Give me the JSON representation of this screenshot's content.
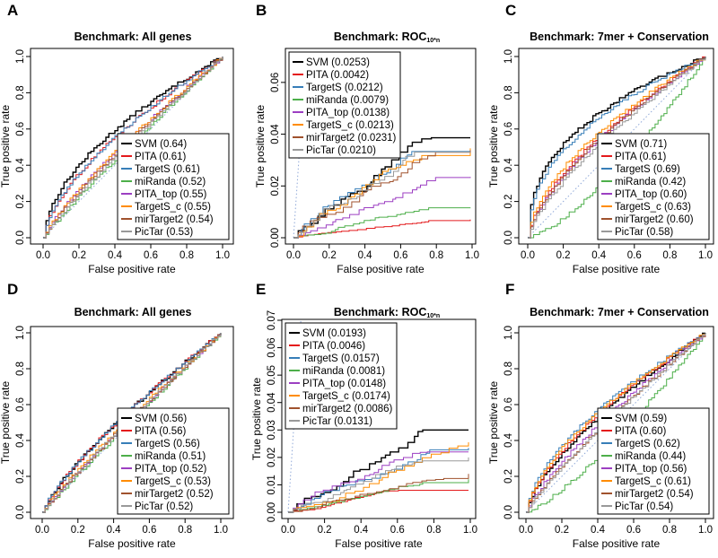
{
  "figure": {
    "colors": {
      "SVM": "#000000",
      "PITA": "#e41a1c",
      "TargetS": "#377eb8",
      "miRanda": "#4daf4a",
      "PITA_top": "#9c3fc2",
      "TargetS_c": "#ff8c00",
      "mirTarget2": "#a0522d",
      "PicTar": "#999999",
      "diagonal": "#8fa8d8"
    }
  },
  "chart_data": [
    {
      "panel": "A",
      "type": "line",
      "title": "Benchmark: All genes",
      "title_main": "Benchmark: All genes",
      "title_sub": "",
      "xlabel": "False positive rate",
      "ylabel": "True positive rate",
      "xlim": [
        0,
        1
      ],
      "ylim": [
        0,
        1
      ],
      "xticks": [
        "0.0",
        "0.2",
        "0.4",
        "0.6",
        "0.8",
        "1.0"
      ],
      "yticks": [
        "0.0",
        "0.2",
        "0.4",
        "0.6",
        "0.8",
        "1.0"
      ],
      "legend_position": "bottom-right",
      "series": [
        {
          "name": "SVM",
          "label": "SVM (0.64)",
          "auc": 0.64
        },
        {
          "name": "PITA",
          "label": "PITA (0.61)",
          "auc": 0.61
        },
        {
          "name": "TargetS",
          "label": "TargetS (0.61)",
          "auc": 0.61
        },
        {
          "name": "miRanda",
          "label": "miRanda (0.52)",
          "auc": 0.52
        },
        {
          "name": "PITA_top",
          "label": "PITA_top (0.55)",
          "auc": 0.55
        },
        {
          "name": "TargetS_c",
          "label": "TargetS_c (0.55)",
          "auc": 0.55
        },
        {
          "name": "mirTarget2",
          "label": "mirTarget2 (0.54)",
          "auc": 0.54
        },
        {
          "name": "PicTar",
          "label": "PicTar (0.53)",
          "auc": 0.53
        }
      ]
    },
    {
      "panel": "B",
      "type": "line",
      "title": "Benchmark: ROC10*n",
      "title_main": "Benchmark: ROC",
      "title_sub": "10*n",
      "xlabel": "False positive rate",
      "ylabel": "True positive rate",
      "xlim": [
        0,
        1
      ],
      "ylim": [
        0,
        0.07
      ],
      "xticks": [
        "0.0",
        "0.2",
        "0.4",
        "0.6",
        "0.8",
        "1.0"
      ],
      "yticks": [
        "0.00",
        "0.02",
        "0.04",
        "0.06"
      ],
      "legend_position": "top-left",
      "series": [
        {
          "name": "SVM",
          "label": "SVM (0.0253)",
          "end": 0.0386
        },
        {
          "name": "PITA",
          "label": "PITA (0.0042)",
          "end": 0.007
        },
        {
          "name": "TargetS",
          "label": "TargetS (0.0212)",
          "end": 0.0333
        },
        {
          "name": "miRanda",
          "label": "miRanda (0.0079)",
          "end": 0.0116
        },
        {
          "name": "PITA_top",
          "label": "PITA_top (0.0138)",
          "end": 0.0235
        },
        {
          "name": "TargetS_c",
          "label": "TargetS_c (0.0213)",
          "end": 0.0345
        },
        {
          "name": "mirTarget2",
          "label": "mirTarget2 (0.0231)",
          "end": 0.0338
        },
        {
          "name": "PicTar",
          "label": "PicTar (0.0210)",
          "end": 0.0331
        }
      ]
    },
    {
      "panel": "C",
      "type": "line",
      "title": "Benchmark: 7mer + Conservation",
      "title_main": "Benchmark: 7mer + Conservation",
      "title_sub": "",
      "xlabel": "False positive rate",
      "ylabel": "True positive rate",
      "xlim": [
        0,
        1
      ],
      "ylim": [
        0,
        1
      ],
      "xticks": [
        "0.0",
        "0.2",
        "0.4",
        "0.6",
        "0.8",
        "1.0"
      ],
      "yticks": [
        "0.0",
        "0.2",
        "0.4",
        "0.6",
        "0.8",
        "1.0"
      ],
      "legend_position": "bottom-right",
      "series": [
        {
          "name": "SVM",
          "label": "SVM (0.71)",
          "auc": 0.71
        },
        {
          "name": "PITA",
          "label": "PITA (0.61)",
          "auc": 0.61
        },
        {
          "name": "TargetS",
          "label": "TargetS (0.69)",
          "auc": 0.69
        },
        {
          "name": "miRanda",
          "label": "miRanda (0.42)",
          "auc": 0.42
        },
        {
          "name": "PITA_top",
          "label": "PITA_top (0.60)",
          "auc": 0.6
        },
        {
          "name": "TargetS_c",
          "label": "TargetS_c (0.63)",
          "auc": 0.63
        },
        {
          "name": "mirTarget2",
          "label": "mirTarget2 (0.60)",
          "auc": 0.6
        },
        {
          "name": "PicTar",
          "label": "PicTar (0.58)",
          "auc": 0.58
        }
      ]
    },
    {
      "panel": "D",
      "type": "line",
      "title": "Benchmark: All genes",
      "title_main": "Benchmark: All genes",
      "title_sub": "",
      "xlabel": "False positive rate",
      "ylabel": "True positive rate",
      "xlim": [
        0,
        1
      ],
      "ylim": [
        0,
        1
      ],
      "xticks": [
        "0.0",
        "0.2",
        "0.4",
        "0.6",
        "0.8",
        "1.0"
      ],
      "yticks": [
        "0.0",
        "0.2",
        "0.4",
        "0.6",
        "0.8",
        "1.0"
      ],
      "legend_position": "bottom-right",
      "series": [
        {
          "name": "SVM",
          "label": "SVM (0.56)",
          "auc": 0.56
        },
        {
          "name": "PITA",
          "label": "PITA (0.56)",
          "auc": 0.56
        },
        {
          "name": "TargetS",
          "label": "TargetS (0.56)",
          "auc": 0.56
        },
        {
          "name": "miRanda",
          "label": "miRanda (0.51)",
          "auc": 0.51
        },
        {
          "name": "PITA_top",
          "label": "PITA_top (0.52)",
          "auc": 0.52
        },
        {
          "name": "TargetS_c",
          "label": "TargetS_c (0.53)",
          "auc": 0.53
        },
        {
          "name": "mirTarget2",
          "label": "mirTarget2 (0.52)",
          "auc": 0.52
        },
        {
          "name": "PicTar",
          "label": "PicTar (0.52)",
          "auc": 0.52
        }
      ]
    },
    {
      "panel": "E",
      "type": "line",
      "title": "Benchmark: ROC10*n",
      "title_main": "Benchmark: ROC",
      "title_sub": "10*n",
      "xlabel": "False positive rate",
      "ylabel": "True positive rate",
      "xlim": [
        0,
        1
      ],
      "ylim": [
        0,
        0.07
      ],
      "xticks": [
        "0.0",
        "0.2",
        "0.4",
        "0.6",
        "0.8",
        "1.0"
      ],
      "yticks": [
        "0.00",
        "0.01",
        "0.02",
        "0.03",
        "0.04",
        "0.05",
        "0.06",
        "0.07"
      ],
      "legend_position": "top-left",
      "series": [
        {
          "name": "SVM",
          "label": "SVM (0.0193)",
          "end": 0.03
        },
        {
          "name": "PITA",
          "label": "PITA (0.0046)",
          "end": 0.008
        },
        {
          "name": "TargetS",
          "label": "TargetS (0.0157)",
          "end": 0.0235
        },
        {
          "name": "miRanda",
          "label": "miRanda (0.0081)",
          "end": 0.012
        },
        {
          "name": "PITA_top",
          "label": "PITA_top (0.0148)",
          "end": 0.022
        },
        {
          "name": "TargetS_c",
          "label": "TargetS_c (0.0174)",
          "end": 0.0255
        },
        {
          "name": "mirTarget2",
          "label": "mirTarget2 (0.0086)",
          "end": 0.014
        },
        {
          "name": "PicTar",
          "label": "PicTar (0.0131)",
          "end": 0.02
        }
      ]
    },
    {
      "panel": "F",
      "type": "line",
      "title": "Benchmark: 7mer + Conservation",
      "title_main": "Benchmark: 7mer + Conservation",
      "title_sub": "",
      "xlabel": "False positive rate",
      "ylabel": "True positive rate",
      "xlim": [
        0,
        1
      ],
      "ylim": [
        0,
        1
      ],
      "xticks": [
        "0.0",
        "0.2",
        "0.4",
        "0.6",
        "0.8",
        "1.0"
      ],
      "yticks": [
        "0.0",
        "0.2",
        "0.4",
        "0.6",
        "0.8",
        "1.0"
      ],
      "legend_position": "bottom-right",
      "series": [
        {
          "name": "SVM",
          "label": "SVM (0.59)",
          "auc": 0.59
        },
        {
          "name": "PITA",
          "label": "PITA (0.60)",
          "auc": 0.6
        },
        {
          "name": "TargetS",
          "label": "TargetS (0.62)",
          "auc": 0.62
        },
        {
          "name": "miRanda",
          "label": "miRanda (0.44)",
          "auc": 0.44
        },
        {
          "name": "PITA_top",
          "label": "PITA_top (0.56)",
          "auc": 0.56
        },
        {
          "name": "TargetS_c",
          "label": "TargetS_c (0.61)",
          "auc": 0.61
        },
        {
          "name": "mirTarget2",
          "label": "mirTarget2 (0.54)",
          "auc": 0.54
        },
        {
          "name": "PicTar",
          "label": "PicTar (0.54)",
          "auc": 0.54
        }
      ]
    }
  ]
}
